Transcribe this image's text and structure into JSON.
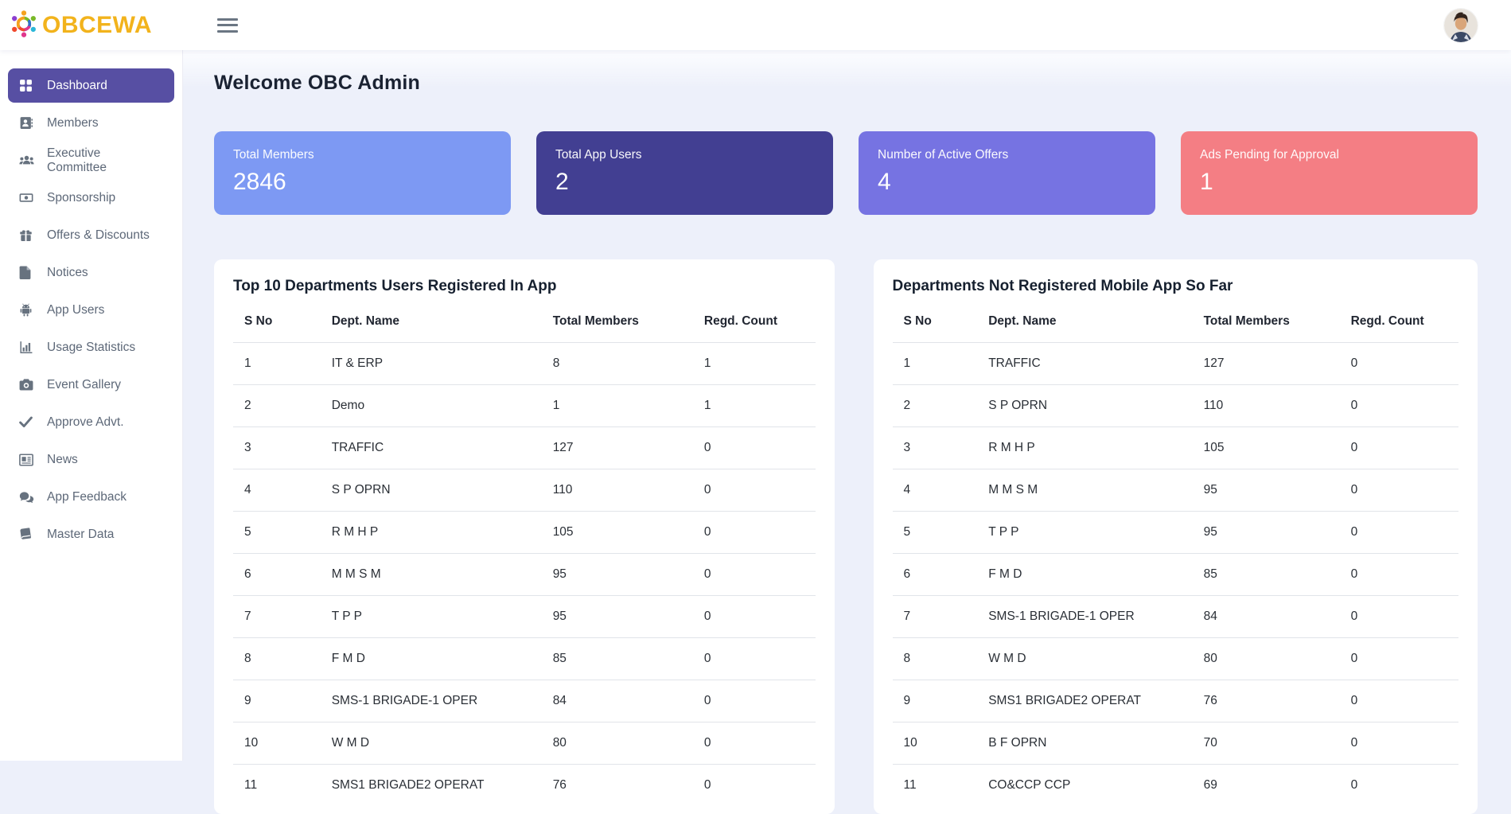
{
  "brand": {
    "name": "OBCEWA",
    "logo_icon": "people-star-logo-icon"
  },
  "header": {
    "menu_icon": "hamburger-menu-icon",
    "avatar_icon": "user-avatar"
  },
  "welcome_heading": "Welcome OBC Admin",
  "sidebar": {
    "items": [
      {
        "label": "Dashboard",
        "icon": "grid-icon",
        "active": true
      },
      {
        "label": "Members",
        "icon": "address-book-icon",
        "active": false
      },
      {
        "label": "Executive Committee",
        "icon": "users-icon",
        "active": false
      },
      {
        "label": "Sponsorship",
        "icon": "money-bill-icon",
        "active": false
      },
      {
        "label": "Offers & Discounts",
        "icon": "gift-icon",
        "active": false
      },
      {
        "label": "Notices",
        "icon": "file-icon",
        "active": false
      },
      {
        "label": "App Users",
        "icon": "android-icon",
        "active": false
      },
      {
        "label": "Usage Statistics",
        "icon": "bar-chart-icon",
        "active": false
      },
      {
        "label": "Event Gallery",
        "icon": "camera-icon",
        "active": false
      },
      {
        "label": "Approve Advt.",
        "icon": "check-icon",
        "active": false
      },
      {
        "label": "News",
        "icon": "newspaper-icon",
        "active": false
      },
      {
        "label": "App Feedback",
        "icon": "comments-icon",
        "active": false
      },
      {
        "label": "Master Data",
        "icon": "book-icon",
        "active": false
      }
    ]
  },
  "stat_cards": [
    {
      "label": "Total Members",
      "value": "2846",
      "color": "#7d99f3"
    },
    {
      "label": "Total App Users",
      "value": "2",
      "color": "#423f92"
    },
    {
      "label": "Number of Active Offers",
      "value": "4",
      "color": "#7673e2"
    },
    {
      "label": "Ads Pending for Approval",
      "value": "1",
      "color": "#f47e84"
    }
  ],
  "tables": [
    {
      "title": "Top 10 Departments Users Registered In App",
      "headers": [
        "S No",
        "Dept. Name",
        "Total Members",
        "Regd. Count"
      ],
      "rows": [
        {
          "s_no": "1",
          "dept_name": "IT & ERP",
          "total_members": "8",
          "regd_count": "1"
        },
        {
          "s_no": "2",
          "dept_name": "Demo",
          "total_members": "1",
          "regd_count": "1"
        },
        {
          "s_no": "3",
          "dept_name": "TRAFFIC",
          "total_members": "127",
          "regd_count": "0"
        },
        {
          "s_no": "4",
          "dept_name": "S P OPRN",
          "total_members": "110",
          "regd_count": "0"
        },
        {
          "s_no": "5",
          "dept_name": "R M H P",
          "total_members": "105",
          "regd_count": "0"
        },
        {
          "s_no": "6",
          "dept_name": "M M S M",
          "total_members": "95",
          "regd_count": "0"
        },
        {
          "s_no": "7",
          "dept_name": "T P P",
          "total_members": "95",
          "regd_count": "0"
        },
        {
          "s_no": "8",
          "dept_name": "F M D",
          "total_members": "85",
          "regd_count": "0"
        },
        {
          "s_no": "9",
          "dept_name": "SMS-1 BRIGADE-1 OPER",
          "total_members": "84",
          "regd_count": "0"
        },
        {
          "s_no": "10",
          "dept_name": "W M D",
          "total_members": "80",
          "regd_count": "0"
        },
        {
          "s_no": "11",
          "dept_name": "SMS1 BRIGADE2 OPERAT",
          "total_members": "76",
          "regd_count": "0"
        }
      ]
    },
    {
      "title": "Departments Not Registered Mobile App So Far",
      "headers": [
        "S No",
        "Dept. Name",
        "Total Members",
        "Regd. Count"
      ],
      "rows": [
        {
          "s_no": "1",
          "dept_name": "TRAFFIC",
          "total_members": "127",
          "regd_count": "0"
        },
        {
          "s_no": "2",
          "dept_name": "S P OPRN",
          "total_members": "110",
          "regd_count": "0"
        },
        {
          "s_no": "3",
          "dept_name": "R M H P",
          "total_members": "105",
          "regd_count": "0"
        },
        {
          "s_no": "4",
          "dept_name": "M M S M",
          "total_members": "95",
          "regd_count": "0"
        },
        {
          "s_no": "5",
          "dept_name": "T P P",
          "total_members": "95",
          "regd_count": "0"
        },
        {
          "s_no": "6",
          "dept_name": "F M D",
          "total_members": "85",
          "regd_count": "0"
        },
        {
          "s_no": "7",
          "dept_name": "SMS-1 BRIGADE-1 OPER",
          "total_members": "84",
          "regd_count": "0"
        },
        {
          "s_no": "8",
          "dept_name": "W M D",
          "total_members": "80",
          "regd_count": "0"
        },
        {
          "s_no": "9",
          "dept_name": "SMS1 BRIGADE2 OPERAT",
          "total_members": "76",
          "regd_count": "0"
        },
        {
          "s_no": "10",
          "dept_name": "B F OPRN",
          "total_members": "70",
          "regd_count": "0"
        },
        {
          "s_no": "11",
          "dept_name": "CO&CCP CCP",
          "total_members": "69",
          "regd_count": "0"
        }
      ]
    }
  ]
}
